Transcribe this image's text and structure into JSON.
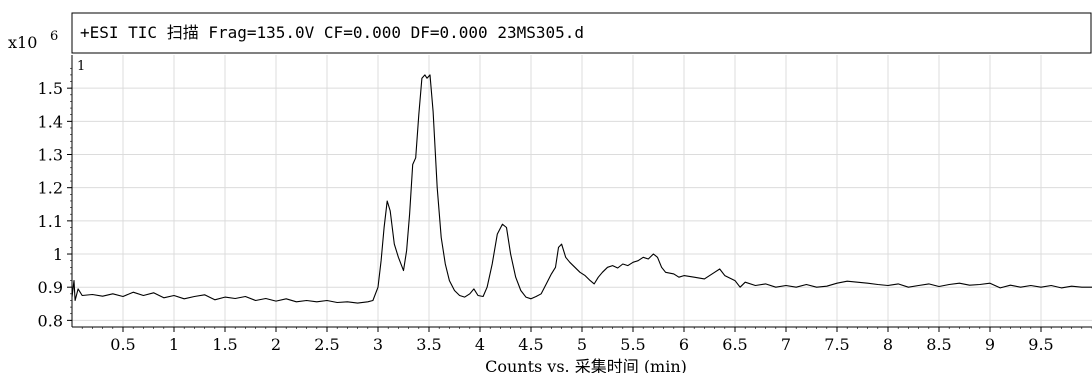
{
  "chart_data": {
    "type": "line",
    "title": "+ESI TIC 扫描 Frag=135.0V CF=0.000 DF=0.000 23MS305.d",
    "y_multiplier_label": "x10",
    "y_multiplier_exponent": "6",
    "trace_index_label": "1",
    "xlabel": "Counts vs. 采集时间 (min)",
    "ylabel": "",
    "xlim": [
      0,
      10.0
    ],
    "ylim": [
      0.78,
      1.6
    ],
    "x_ticks": [
      0.5,
      1,
      1.5,
      2,
      2.5,
      3,
      3.5,
      4,
      4.5,
      5,
      5.5,
      6,
      6.5,
      7,
      7.5,
      8,
      8.5,
      9,
      9.5
    ],
    "x_tick_labels": [
      "0.5",
      "1",
      "1.5",
      "2",
      "2.5",
      "3",
      "3.5",
      "4",
      "4.5",
      "5",
      "5.5",
      "6",
      "6.5",
      "7",
      "7.5",
      "8",
      "8.5",
      "9",
      "9.5"
    ],
    "y_ticks": [
      0.8,
      0.9,
      1.0,
      1.1,
      1.2,
      1.3,
      1.4,
      1.5
    ],
    "y_tick_labels": [
      "0.8",
      "0.9",
      "1",
      "1.1",
      "1.2",
      "1.3",
      "1.4",
      "1.5"
    ],
    "grid": true,
    "line_color": "#000000",
    "grid_color": "#dcdcdc",
    "series": [
      {
        "points": [
          [
            0.0,
            0.87
          ],
          [
            0.02,
            0.92
          ],
          [
            0.03,
            0.86
          ],
          [
            0.06,
            0.895
          ],
          [
            0.1,
            0.875
          ],
          [
            0.2,
            0.878
          ],
          [
            0.3,
            0.873
          ],
          [
            0.4,
            0.88
          ],
          [
            0.5,
            0.872
          ],
          [
            0.6,
            0.885
          ],
          [
            0.7,
            0.875
          ],
          [
            0.8,
            0.883
          ],
          [
            0.9,
            0.868
          ],
          [
            1.0,
            0.875
          ],
          [
            1.1,
            0.865
          ],
          [
            1.2,
            0.872
          ],
          [
            1.3,
            0.877
          ],
          [
            1.4,
            0.862
          ],
          [
            1.5,
            0.87
          ],
          [
            1.6,
            0.866
          ],
          [
            1.7,
            0.872
          ],
          [
            1.8,
            0.86
          ],
          [
            1.9,
            0.866
          ],
          [
            2.0,
            0.858
          ],
          [
            2.1,
            0.865
          ],
          [
            2.2,
            0.856
          ],
          [
            2.3,
            0.86
          ],
          [
            2.4,
            0.856
          ],
          [
            2.5,
            0.86
          ],
          [
            2.6,
            0.854
          ],
          [
            2.7,
            0.856
          ],
          [
            2.8,
            0.852
          ],
          [
            2.9,
            0.856
          ],
          [
            2.95,
            0.86
          ],
          [
            3.0,
            0.9
          ],
          [
            3.03,
            0.98
          ],
          [
            3.06,
            1.08
          ],
          [
            3.09,
            1.16
          ],
          [
            3.12,
            1.13
          ],
          [
            3.16,
            1.03
          ],
          [
            3.2,
            0.99
          ],
          [
            3.25,
            0.95
          ],
          [
            3.28,
            1.01
          ],
          [
            3.31,
            1.12
          ],
          [
            3.34,
            1.27
          ],
          [
            3.37,
            1.29
          ],
          [
            3.4,
            1.42
          ],
          [
            3.43,
            1.53
          ],
          [
            3.46,
            1.54
          ],
          [
            3.48,
            1.53
          ],
          [
            3.51,
            1.54
          ],
          [
            3.54,
            1.43
          ],
          [
            3.58,
            1.2
          ],
          [
            3.62,
            1.05
          ],
          [
            3.66,
            0.97
          ],
          [
            3.7,
            0.92
          ],
          [
            3.75,
            0.89
          ],
          [
            3.8,
            0.875
          ],
          [
            3.85,
            0.87
          ],
          [
            3.9,
            0.88
          ],
          [
            3.94,
            0.895
          ],
          [
            3.98,
            0.875
          ],
          [
            4.03,
            0.872
          ],
          [
            4.07,
            0.9
          ],
          [
            4.12,
            0.97
          ],
          [
            4.17,
            1.06
          ],
          [
            4.22,
            1.09
          ],
          [
            4.26,
            1.08
          ],
          [
            4.3,
            1.0
          ],
          [
            4.35,
            0.93
          ],
          [
            4.4,
            0.89
          ],
          [
            4.45,
            0.87
          ],
          [
            4.5,
            0.865
          ],
          [
            4.55,
            0.872
          ],
          [
            4.6,
            0.88
          ],
          [
            4.65,
            0.91
          ],
          [
            4.7,
            0.94
          ],
          [
            4.74,
            0.96
          ],
          [
            4.77,
            1.02
          ],
          [
            4.8,
            1.03
          ],
          [
            4.84,
            0.99
          ],
          [
            4.88,
            0.975
          ],
          [
            4.93,
            0.96
          ],
          [
            4.98,
            0.945
          ],
          [
            5.03,
            0.935
          ],
          [
            5.08,
            0.92
          ],
          [
            5.12,
            0.91
          ],
          [
            5.16,
            0.93
          ],
          [
            5.2,
            0.945
          ],
          [
            5.25,
            0.96
          ],
          [
            5.3,
            0.965
          ],
          [
            5.35,
            0.958
          ],
          [
            5.4,
            0.97
          ],
          [
            5.45,
            0.965
          ],
          [
            5.5,
            0.975
          ],
          [
            5.55,
            0.98
          ],
          [
            5.6,
            0.99
          ],
          [
            5.65,
            0.985
          ],
          [
            5.7,
            1.0
          ],
          [
            5.74,
            0.99
          ],
          [
            5.78,
            0.96
          ],
          [
            5.82,
            0.945
          ],
          [
            5.9,
            0.94
          ],
          [
            5.95,
            0.93
          ],
          [
            6.0,
            0.935
          ],
          [
            6.1,
            0.93
          ],
          [
            6.2,
            0.925
          ],
          [
            6.3,
            0.945
          ],
          [
            6.35,
            0.955
          ],
          [
            6.4,
            0.935
          ],
          [
            6.5,
            0.92
          ],
          [
            6.55,
            0.9
          ],
          [
            6.6,
            0.915
          ],
          [
            6.7,
            0.905
          ],
          [
            6.8,
            0.91
          ],
          [
            6.9,
            0.9
          ],
          [
            7.0,
            0.905
          ],
          [
            7.1,
            0.9
          ],
          [
            7.2,
            0.908
          ],
          [
            7.3,
            0.9
          ],
          [
            7.4,
            0.903
          ],
          [
            7.5,
            0.912
          ],
          [
            7.6,
            0.918
          ],
          [
            7.7,
            0.915
          ],
          [
            7.8,
            0.912
          ],
          [
            7.9,
            0.908
          ],
          [
            8.0,
            0.905
          ],
          [
            8.1,
            0.91
          ],
          [
            8.2,
            0.9
          ],
          [
            8.3,
            0.905
          ],
          [
            8.4,
            0.91
          ],
          [
            8.5,
            0.902
          ],
          [
            8.6,
            0.908
          ],
          [
            8.7,
            0.912
          ],
          [
            8.8,
            0.906
          ],
          [
            8.9,
            0.908
          ],
          [
            9.0,
            0.912
          ],
          [
            9.1,
            0.898
          ],
          [
            9.2,
            0.906
          ],
          [
            9.3,
            0.9
          ],
          [
            9.4,
            0.905
          ],
          [
            9.5,
            0.9
          ],
          [
            9.6,
            0.905
          ],
          [
            9.7,
            0.898
          ],
          [
            9.8,
            0.903
          ],
          [
            9.9,
            0.9
          ],
          [
            10.0,
            0.9
          ]
        ]
      }
    ]
  }
}
